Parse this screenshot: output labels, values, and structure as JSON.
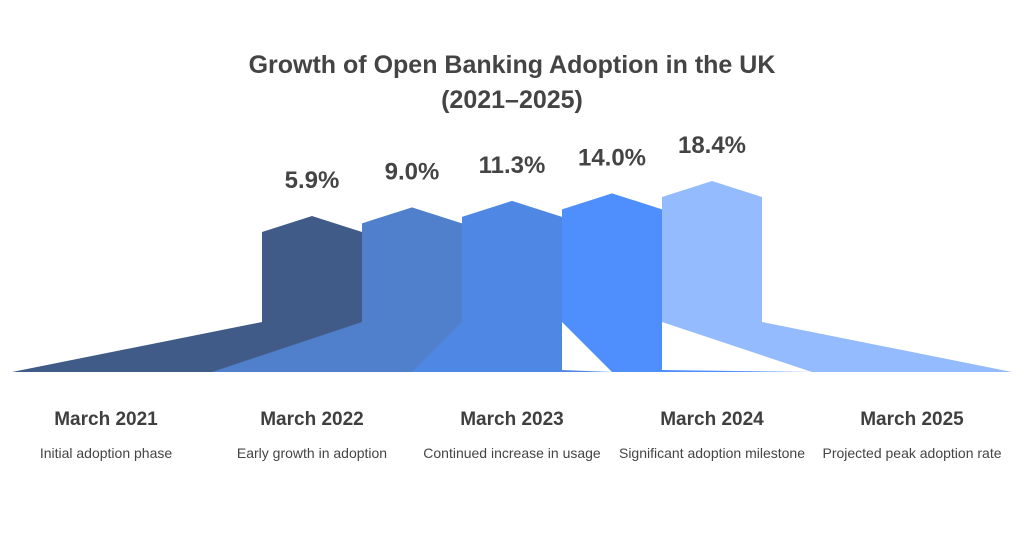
{
  "title_line1": "Growth of Open Banking Adoption in the UK",
  "title_line2": "(2021–2025)",
  "chart_data": {
    "type": "bar",
    "title": "Growth of Open Banking Adoption in the UK (2021–2025)",
    "categories": [
      "March 2021",
      "March 2022",
      "March 2023",
      "March 2024",
      "March 2025"
    ],
    "values": [
      5.9,
      9.0,
      11.3,
      14.0,
      18.4
    ],
    "value_labels": [
      "5.9%",
      "9.0%",
      "11.3%",
      "14.0%",
      "18.4%"
    ],
    "descriptions": [
      "Initial adoption phase",
      "Early growth in adoption",
      "Continued increase in usage",
      "Significant adoption milestone",
      "Projected peak adoption rate"
    ],
    "unit": "%",
    "colors": [
      "#405b87",
      "#5080cb",
      "#4e88e4",
      "#4f8ffd",
      "#94bbfe"
    ],
    "grid": false,
    "legend": "none"
  }
}
